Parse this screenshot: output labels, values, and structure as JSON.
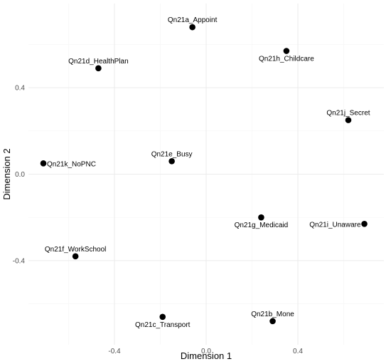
{
  "chart_data": {
    "type": "scatter",
    "title": "",
    "xlabel": "Dimension 1",
    "ylabel": "Dimension 2",
    "xlim": [
      -0.71,
      0.71
    ],
    "ylim": [
      -0.72,
      0.72
    ],
    "x_ticks": [
      -0.4,
      0.0,
      0.4
    ],
    "x_tick_labels": [
      "-0.4",
      "0.0",
      "0.4"
    ],
    "y_ticks": [
      -0.4,
      0.0,
      0.4
    ],
    "y_tick_labels": [
      "-0.4",
      "0.0",
      "0.4"
    ],
    "grid": true,
    "legend": "none",
    "point_color": "#000000",
    "points": [
      {
        "label": "Qn21a_Appoint",
        "x": -0.06,
        "y": 0.68,
        "label_pos": "above"
      },
      {
        "label": "Qn21d_HealthPlan",
        "x": -0.47,
        "y": 0.49,
        "label_pos": "above"
      },
      {
        "label": "Qn21h_Childcare",
        "x": 0.35,
        "y": 0.57,
        "label_pos": "below"
      },
      {
        "label": "Qn21j_Secret",
        "x": 0.62,
        "y": 0.25,
        "label_pos": "above"
      },
      {
        "label": "Qn21k_NoPNC",
        "x": -0.71,
        "y": 0.05,
        "label_pos": "right"
      },
      {
        "label": "Qn21e_Busy",
        "x": -0.15,
        "y": 0.06,
        "label_pos": "above"
      },
      {
        "label": "Qn21g_Medicaid",
        "x": 0.24,
        "y": -0.2,
        "label_pos": "below"
      },
      {
        "label": "Qn21i_Unaware",
        "x": 0.69,
        "y": -0.23,
        "label_pos": "left"
      },
      {
        "label": "Qn21f_WorkSchool",
        "x": -0.57,
        "y": -0.38,
        "label_pos": "above"
      },
      {
        "label": "Qn21c_Transport",
        "x": -0.19,
        "y": -0.66,
        "label_pos": "below"
      },
      {
        "label": "Qn21b_Mone",
        "x": 0.29,
        "y": -0.68,
        "label_pos": "above"
      }
    ]
  }
}
